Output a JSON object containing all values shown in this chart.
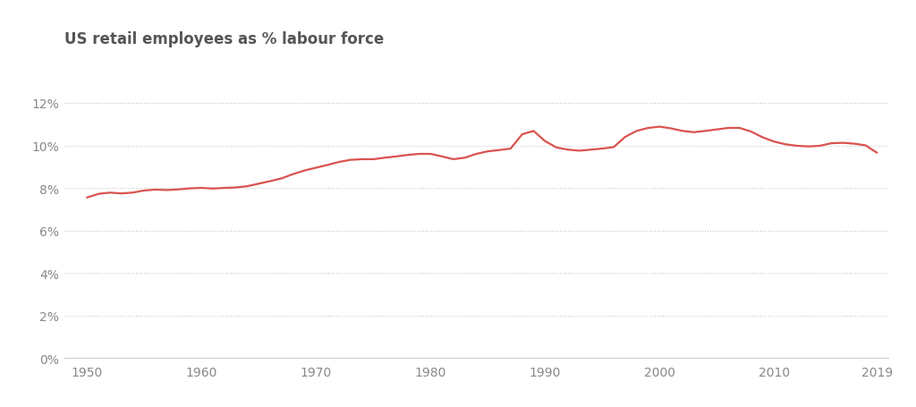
{
  "title": "US retail employees as % labour force",
  "title_color": "#555555",
  "title_fontsize": 12,
  "background_color": "#ffffff",
  "line_color": "#d9534f",
  "line_width": 1.6,
  "grid_color": "#c8c8c8",
  "ylabel_color": "#888888",
  "xlabel_color": "#888888",
  "tick_fontsize": 10,
  "xlim": [
    1948,
    2020
  ],
  "ylim": [
    0,
    0.14
  ],
  "yticks": [
    0,
    0.02,
    0.04,
    0.06,
    0.08,
    0.1,
    0.12
  ],
  "xticks": [
    1950,
    1960,
    1970,
    1980,
    1990,
    2000,
    2010,
    2019
  ],
  "years": [
    1950,
    1951,
    1952,
    1953,
    1954,
    1955,
    1956,
    1957,
    1958,
    1959,
    1960,
    1961,
    1962,
    1963,
    1964,
    1965,
    1966,
    1967,
    1968,
    1969,
    1970,
    1971,
    1972,
    1973,
    1974,
    1975,
    1976,
    1977,
    1978,
    1979,
    1980,
    1981,
    1982,
    1983,
    1984,
    1985,
    1986,
    1987,
    1988,
    1989,
    1990,
    1991,
    1992,
    1993,
    1994,
    1995,
    1996,
    1997,
    1998,
    1999,
    2000,
    2001,
    2002,
    2003,
    2004,
    2005,
    2006,
    2007,
    2008,
    2009,
    2010,
    2011,
    2012,
    2013,
    2014,
    2015,
    2016,
    2017,
    2018,
    2019
  ],
  "values": [
    0.0755,
    0.0772,
    0.0778,
    0.0774,
    0.0778,
    0.0788,
    0.0792,
    0.079,
    0.0793,
    0.0798,
    0.08,
    0.0797,
    0.08,
    0.0802,
    0.0808,
    0.082,
    0.0832,
    0.0845,
    0.0865,
    0.0882,
    0.0895,
    0.0908,
    0.0922,
    0.0932,
    0.0935,
    0.0935,
    0.0942,
    0.0948,
    0.0955,
    0.096,
    0.096,
    0.0948,
    0.0935,
    0.0942,
    0.096,
    0.0972,
    0.0978,
    0.0985,
    0.1052,
    0.1068,
    0.102,
    0.099,
    0.098,
    0.0975,
    0.098,
    0.0985,
    0.0992,
    0.104,
    0.1068,
    0.1082,
    0.1088,
    0.108,
    0.1068,
    0.1062,
    0.1068,
    0.1075,
    0.1082,
    0.1082,
    0.1065,
    0.1038,
    0.1018,
    0.1005,
    0.0998,
    0.0995,
    0.0998,
    0.101,
    0.1012,
    0.1008,
    0.1,
    0.0965
  ]
}
